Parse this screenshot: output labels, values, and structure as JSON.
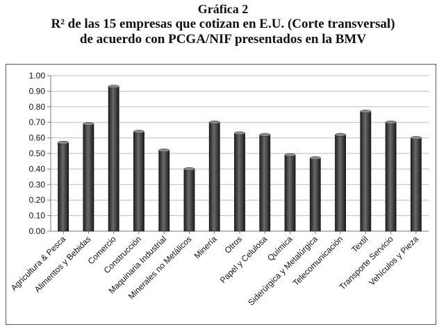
{
  "figure": {
    "title_line1": "Gráfica 2",
    "title_line2": "R² de las 15 empresas que cotizan en E.U. (Corte transversal)",
    "title_line3": "de acuerdo con PCGA/NIF presentados en la BMV"
  },
  "chart_data": {
    "type": "bar",
    "title": "Gráfica 2 R² de las 15 empresas que cotizan en E.U. (Corte transversal) de acuerdo con PCGA/NIF presentados en la BMV",
    "xlabel": "",
    "ylabel": "",
    "ylim": [
      0,
      1
    ],
    "yticks": [
      "0.00",
      "0.10",
      "0.20",
      "0.30",
      "0.40",
      "0.50",
      "0.60",
      "0.70",
      "0.80",
      "0.90",
      "1.00"
    ],
    "grid": true,
    "legend": "none",
    "bar_color": "#3d3d3d",
    "categories": [
      "Agricultura & Pesca",
      "Alimentos y Bebidas",
      "Comercio",
      "Construcción",
      "Maquinaria Industrial",
      "Minerales no Metálicos",
      "Minería",
      "Otros",
      "Papel y Celulosa",
      "Química",
      "Siderúrgica y Metalúrgica",
      "Telecomunicación",
      "Textil",
      "Transporte Servicio",
      "Vehículos y Pieza"
    ],
    "values": [
      0.57,
      0.69,
      0.93,
      0.64,
      0.52,
      0.4,
      0.7,
      0.63,
      0.62,
      0.49,
      0.47,
      0.62,
      0.77,
      0.7,
      0.6
    ]
  }
}
